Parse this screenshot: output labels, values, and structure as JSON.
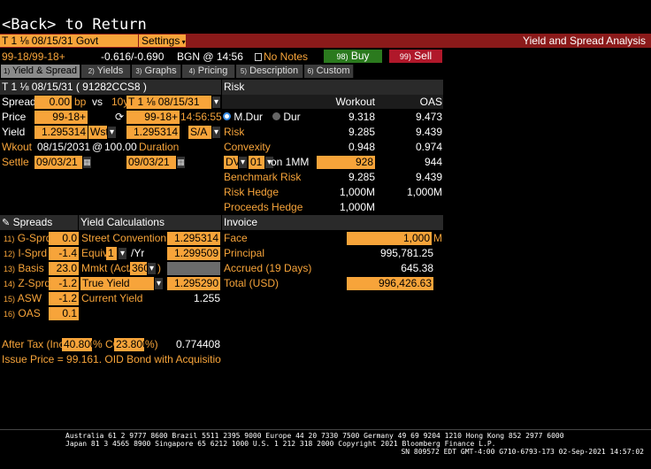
{
  "back_text": "<Back> to Return",
  "title_bar": {
    "security": "T 1 ⅛ 08/15/31 Govt",
    "settings_label": "Settings",
    "app_title": "Yield and Spread Analysis"
  },
  "quote_bar": {
    "bid_ask": "99-18/99-18+",
    "change": "-0.616/-0.690",
    "source_time": "BGN @ 14:56",
    "notes": "No Notes",
    "buy_label": "Buy",
    "buy_key": "98)",
    "sell_label": "Sell",
    "sell_key": "99)"
  },
  "tabs": [
    {
      "key": "1)",
      "label": "Yield & Spread"
    },
    {
      "key": "2)",
      "label": "Yields"
    },
    {
      "key": "3)",
      "label": "Graphs"
    },
    {
      "key": "4)",
      "label": "Pricing"
    },
    {
      "key": "5)",
      "label": "Description"
    },
    {
      "key": "6)",
      "label": "Custom"
    }
  ],
  "left": {
    "header": "T 1 ⅛ 08/15/31 ( 91282CCS8 )",
    "spread_label": "Spread",
    "spread_value": "0.00",
    "spread_unit": "bp",
    "vs_label": "vs",
    "benchmark_tenor": "10y",
    "benchmark": "T 1 ⅛ 08/15/31",
    "price_label": "Price",
    "price_value": "99-18+",
    "price_value2": "99-18+",
    "price_time": "14:56:55",
    "yield_label": "Yield",
    "yield_value": "1.295314",
    "yield_conv": "Wst",
    "yield_value2": "1.295314",
    "yield_conv2": "S/A",
    "wkout_label": "Wkout",
    "wkout_date": "08/15/2031",
    "wkout_at": "@",
    "wkout_price": "100.00",
    "duration_label": "Duration",
    "settle_label": "Settle",
    "settle_date": "09/03/21",
    "settle_date2": "09/03/21"
  },
  "risk": {
    "header": "Risk",
    "col_workout": "Workout",
    "col_oas": "OAS",
    "mdur_label": "M.Dur",
    "dur_label": "Dur",
    "rows": [
      {
        "label": "",
        "workout": "9.318",
        "oas": "9.473"
      },
      {
        "label": "Risk",
        "workout": "9.285",
        "oas": "9.439"
      },
      {
        "label": "Convexity",
        "workout": "0.948",
        "oas": "0.974"
      }
    ],
    "dv_label": "DV",
    "dv_num": "01",
    "dv_on": "on 1MM",
    "dv_workout": "928",
    "dv_oas": "944",
    "bench_risk_label": "Benchmark Risk",
    "bench_risk_workout": "9.285",
    "bench_risk_oas": "9.439",
    "risk_hedge_label": "Risk Hedge",
    "risk_hedge_workout": "1,000M",
    "risk_hedge_oas": "1,000M",
    "proceeds_hedge_label": "Proceeds Hedge",
    "proceeds_hedge_workout": "1,000M"
  },
  "spreads": {
    "header": "Spreads",
    "rows": [
      {
        "key": "11)",
        "label": "G-Sprd",
        "value": "0.0"
      },
      {
        "key": "12)",
        "label": "I-Sprd",
        "value": "-1.4"
      },
      {
        "key": "13)",
        "label": "Basis",
        "value": "23.0"
      },
      {
        "key": "14)",
        "label": "Z-Sprd",
        "value": "-1.2"
      },
      {
        "key": "15)",
        "label": "ASW",
        "value": "-1.2"
      },
      {
        "key": "16)",
        "label": "OAS",
        "value": "0.1"
      }
    ]
  },
  "yield_calc": {
    "header": "Yield Calculations",
    "street_label": "Street Convention",
    "street_value": "1.295314",
    "equiv_label": "Equiv",
    "equiv_num": "1",
    "equiv_per": "/Yr",
    "equiv_value": "1.299509",
    "mmkt_label": "Mmkt (Act/",
    "mmkt_basis": "360",
    "mmkt_close": ")",
    "true_yield_label": "True Yield",
    "true_yield_value": "1.295290",
    "current_label": "Current Yield",
    "current_value": "1.255"
  },
  "invoice": {
    "header": "Invoice",
    "face_label": "Face",
    "face_value": "1,000",
    "face_unit": "M",
    "principal_label": "Principal",
    "principal_value": "995,781.25",
    "accrued_label": "Accrued (19 Days)",
    "accrued_value": "645.38",
    "total_label": "Total  (USD)",
    "total_value": "996,426.63"
  },
  "after_tax": {
    "label": "After Tax (Inc",
    "inc_value": "40.800",
    "pct1": "% CG",
    "cg_value": "23.800",
    "pct2": "%)",
    "value": "0.774408"
  },
  "issue_price": "Issue Price = 99.161. OID Bond with Acquisition ...",
  "footer": {
    "line1": "Australia 61 2 9777 8600 Brazil 5511 2395 9000 Europe 44 20 7330 7500 Germany 49 69 9204 1210 Hong Kong 852 2977 6000",
    "line2": "Japan 81 3 4565 8900       Singapore 65 6212 1000       U.S. 1 212 318 2000          Copyright 2021 Bloomberg Finance L.P.",
    "line3": "SN 809572 EDT  GMT-4:00 G710-6793-173 02-Sep-2021 14:57:02"
  },
  "colors": {
    "accent": "#f7a43a",
    "title_bar": "#8b1a1a",
    "buy": "#2b7a1e",
    "sell": "#b0182a"
  }
}
